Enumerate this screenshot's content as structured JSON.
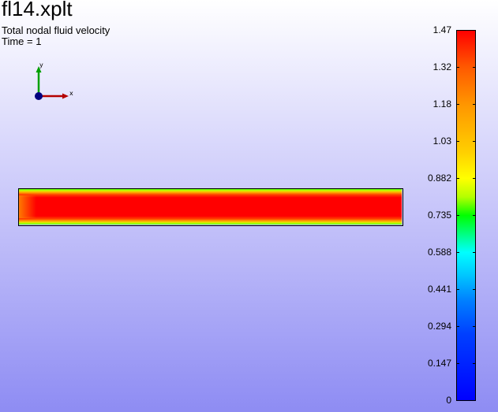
{
  "header": {
    "title": "fl14.xplt",
    "variable": "Total nodal fluid velocity",
    "time_label": "Time = 1"
  },
  "triad": {
    "x_label": "x",
    "y_label": "y",
    "x_color": "#b40000",
    "y_color": "#00a000",
    "z_color": "#000080"
  },
  "colormap": {
    "name": "jet",
    "ticks": [
      "1.47",
      "1.32",
      "1.18",
      "1.03",
      "0.882",
      "0.735",
      "0.588",
      "0.441",
      "0.294",
      "0.147",
      "0"
    ],
    "min": 0,
    "max": 1.47
  },
  "field": {
    "description_colors": [
      "#ff0000",
      "#ffaa00",
      "#ffff00",
      "#00ff00",
      "#00ffff",
      "#0000ff"
    ]
  }
}
